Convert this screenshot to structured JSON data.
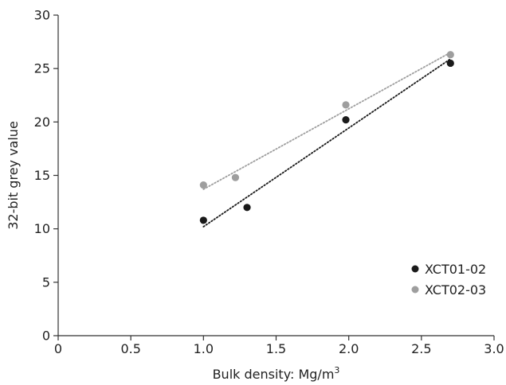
{
  "chart_data": {
    "type": "scatter",
    "xlabel": "Bulk density: Mg/m",
    "xlabel_superscript": "3",
    "ylabel": "32-bit grey value",
    "xlim": [
      0,
      3.0
    ],
    "ylim": [
      0,
      30
    ],
    "x_ticks": [
      "0",
      "0.5",
      "1.0",
      "1.5",
      "2.0",
      "2.5",
      "3.0"
    ],
    "y_ticks": [
      "0",
      "5",
      "10",
      "15",
      "20",
      "25",
      "30"
    ],
    "grid": false,
    "legend_position": "bottom-right",
    "series": [
      {
        "name": "XCT01-02",
        "color": "#1a1a1a",
        "points": [
          {
            "x": 1.0,
            "y": 10.8
          },
          {
            "x": 1.3,
            "y": 12.0
          },
          {
            "x": 1.98,
            "y": 20.2
          },
          {
            "x": 2.7,
            "y": 25.5
          }
        ],
        "trendline": {
          "x": [
            1.0,
            2.7
          ],
          "y": [
            10.2,
            25.9
          ],
          "style": "dotted"
        }
      },
      {
        "name": "XCT02-03",
        "color": "#9e9e9e",
        "points": [
          {
            "x": 1.0,
            "y": 14.1
          },
          {
            "x": 1.22,
            "y": 14.8
          },
          {
            "x": 1.98,
            "y": 21.6
          },
          {
            "x": 2.7,
            "y": 26.3
          }
        ],
        "trendline": {
          "x": [
            1.0,
            2.7
          ],
          "y": [
            13.7,
            26.5
          ],
          "style": "dotted"
        }
      }
    ]
  }
}
